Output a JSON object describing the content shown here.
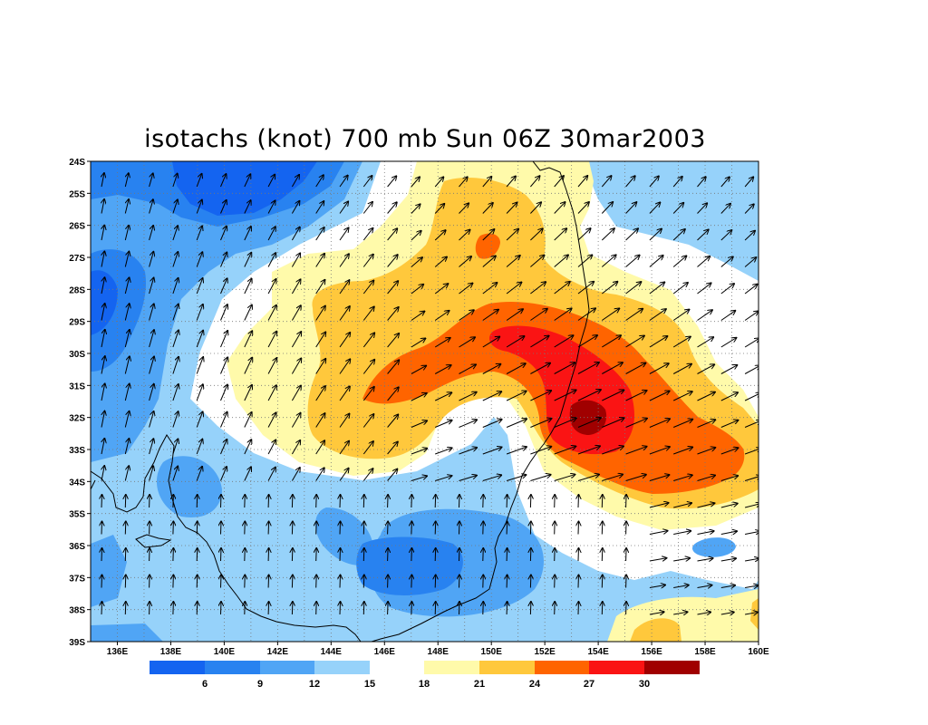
{
  "title": "isotachs (knot) 700 mb Sun 06Z 30mar2003",
  "map": {
    "lon_range": [
      135,
      160
    ],
    "lat_range": [
      -39,
      -24
    ],
    "lat_tick_labels": [
      "24S",
      "25S",
      "26S",
      "27S",
      "28S",
      "29S",
      "30S",
      "31S",
      "32S",
      "33S",
      "34S",
      "35S",
      "36S",
      "37S",
      "38S",
      "39S"
    ],
    "lon_tick_labels": [
      "136E",
      "138E",
      "140E",
      "142E",
      "144E",
      "146E",
      "148E",
      "150E",
      "152E",
      "154E",
      "156E",
      "158E",
      "160E"
    ],
    "grid": "dotted"
  },
  "colorbar": {
    "colors": [
      "#1464f0",
      "#2882f0",
      "#50a5f5",
      "#96d2fa",
      "#ffffff",
      "#fffaaa",
      "#ffc83c",
      "#ff6400",
      "#fa1414",
      "#a00000"
    ],
    "labels": [
      "6",
      "9",
      "12",
      "15",
      "18",
      "21",
      "24",
      "27",
      "30"
    ]
  }
}
